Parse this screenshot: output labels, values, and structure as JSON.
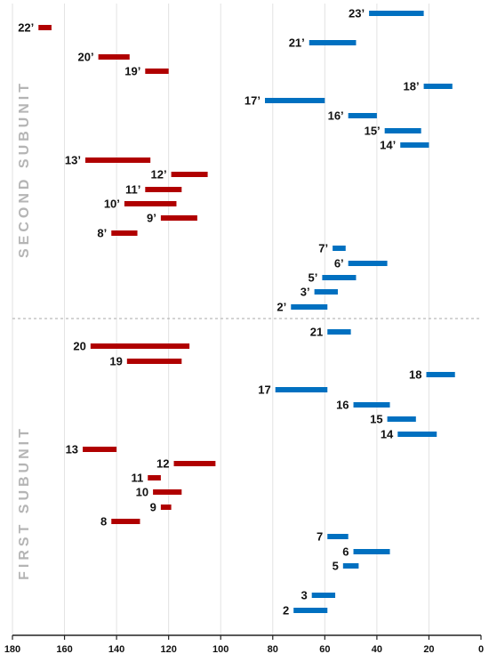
{
  "chart_data": {
    "type": "range-bar",
    "title": "",
    "xlabel": "",
    "ylabel": "",
    "xlim": [
      180,
      0
    ],
    "x_reversed": true,
    "xticks": [
      180,
      160,
      140,
      120,
      100,
      80,
      60,
      40,
      20,
      0
    ],
    "grid": "vertical",
    "colors": {
      "red": "#b00000",
      "blue": "#0070c0",
      "grid": "#e2e2e2",
      "divider": "#aaaaaa",
      "section_text": "#b5b5b5"
    },
    "sections": [
      {
        "name": "SECOND SUBUNIT"
      },
      {
        "name": "FIRST SUBUNIT"
      }
    ],
    "bars": [
      {
        "label": "23’",
        "start": 43,
        "end": 22,
        "color": "blue"
      },
      {
        "label": "22’",
        "start": 170,
        "end": 165,
        "color": "red"
      },
      {
        "label": "21’",
        "start": 66,
        "end": 48,
        "color": "blue"
      },
      {
        "label": "20’",
        "start": 147,
        "end": 135,
        "color": "red"
      },
      {
        "label": "19’",
        "start": 129,
        "end": 120,
        "color": "red"
      },
      {
        "label": "18’",
        "start": 22,
        "end": 11,
        "color": "blue"
      },
      {
        "label": "17’",
        "start": 83,
        "end": 60,
        "color": "blue"
      },
      {
        "label": "16’",
        "start": 51,
        "end": 40,
        "color": "blue"
      },
      {
        "label": "15’",
        "start": 37,
        "end": 23,
        "color": "blue"
      },
      {
        "label": "14’",
        "start": 31,
        "end": 20,
        "color": "blue"
      },
      {
        "label": "13’",
        "start": 152,
        "end": 127,
        "color": "red"
      },
      {
        "label": "12’",
        "start": 119,
        "end": 105,
        "color": "red"
      },
      {
        "label": "11’",
        "start": 129,
        "end": 115,
        "color": "red"
      },
      {
        "label": "10’",
        "start": 137,
        "end": 117,
        "color": "red"
      },
      {
        "label": "9’",
        "start": 123,
        "end": 109,
        "color": "red"
      },
      {
        "label": "8’",
        "start": 142,
        "end": 132,
        "color": "red"
      },
      {
        "label": "7’",
        "start": 57,
        "end": 52,
        "color": "blue"
      },
      {
        "label": "6’",
        "start": 51,
        "end": 36,
        "color": "blue"
      },
      {
        "label": "5’",
        "start": 61,
        "end": 48,
        "color": "blue"
      },
      {
        "label": "3’",
        "start": 64,
        "end": 55,
        "color": "blue"
      },
      {
        "label": "2’",
        "start": 73,
        "end": 59,
        "color": "blue"
      },
      {
        "label": "21",
        "start": 59,
        "end": 50,
        "color": "blue"
      },
      {
        "label": "20",
        "start": 150,
        "end": 112,
        "color": "red"
      },
      {
        "label": "19",
        "start": 136,
        "end": 115,
        "color": "red"
      },
      {
        "label": "18",
        "start": 21,
        "end": 10,
        "color": "blue"
      },
      {
        "label": "17",
        "start": 79,
        "end": 59,
        "color": "blue"
      },
      {
        "label": "16",
        "start": 49,
        "end": 35,
        "color": "blue"
      },
      {
        "label": "15",
        "start": 36,
        "end": 25,
        "color": "blue"
      },
      {
        "label": "14",
        "start": 32,
        "end": 17,
        "color": "blue"
      },
      {
        "label": "13",
        "start": 153,
        "end": 140,
        "color": "red"
      },
      {
        "label": "12",
        "start": 118,
        "end": 102,
        "color": "red"
      },
      {
        "label": "11",
        "start": 128,
        "end": 123,
        "color": "red"
      },
      {
        "label": "10",
        "start": 126,
        "end": 115,
        "color": "red"
      },
      {
        "label": "9",
        "start": 123,
        "end": 119,
        "color": "red"
      },
      {
        "label": "8",
        "start": 142,
        "end": 131,
        "color": "red"
      },
      {
        "label": "7",
        "start": 59,
        "end": 51,
        "color": "blue"
      },
      {
        "label": "6",
        "start": 49,
        "end": 35,
        "color": "blue"
      },
      {
        "label": "5",
        "start": 53,
        "end": 47,
        "color": "blue"
      },
      {
        "label": "3",
        "start": 65,
        "end": 56,
        "color": "blue"
      },
      {
        "label": "2",
        "start": 72,
        "end": 59,
        "color": "blue"
      }
    ]
  }
}
